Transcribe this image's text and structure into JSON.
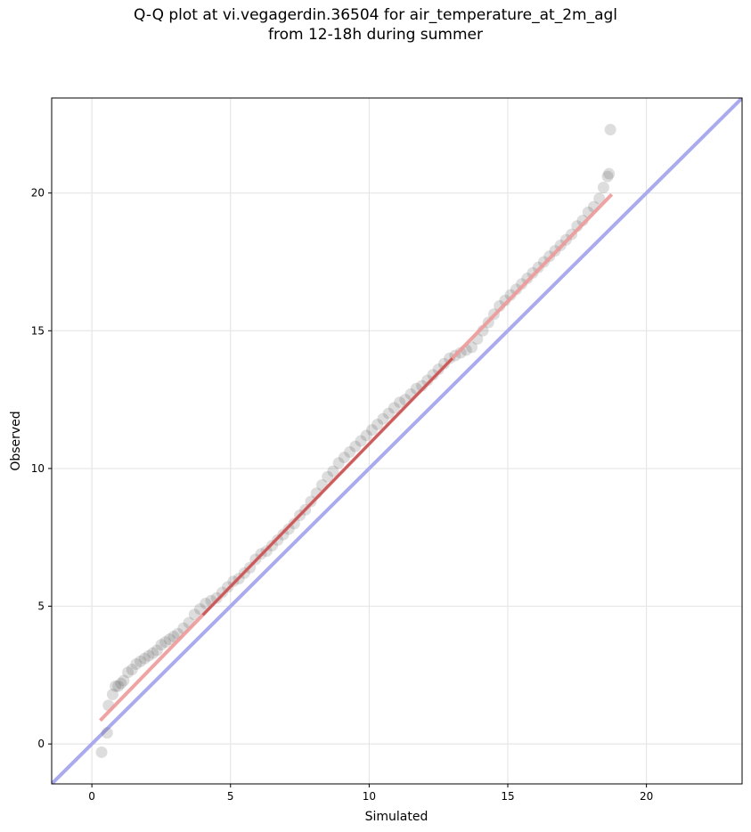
{
  "title": {
    "line1": "Q-Q plot at vi.vegagerdin.36504 for air_temperature_at_2m_agl",
    "line2": "from 12-18h during summer"
  },
  "chart_data": {
    "type": "scatter",
    "xlabel": "Simulated",
    "ylabel": "Observed",
    "xlim": [
      -1.45,
      23.45
    ],
    "ylim": [
      -1.45,
      23.45
    ],
    "xticks": [
      "0",
      "5",
      "10",
      "15",
      "20"
    ],
    "yticks": [
      "0",
      "5",
      "10",
      "15",
      "20"
    ],
    "tick_values": [
      0,
      5,
      10,
      15,
      20
    ],
    "grid": true,
    "colors": {
      "points": "#555555",
      "reference_line": "#aaaaee",
      "fit_line": "#ee9999",
      "core_line": "#aa2222"
    },
    "reference_line": {
      "name": "",
      "x": [
        -1.45,
        23.45
      ],
      "y": [
        -1.45,
        23.45
      ]
    },
    "fit_line": {
      "name": "",
      "x": [
        0.3,
        18.75
      ],
      "y": [
        0.85,
        19.95
      ]
    },
    "series": [
      {
        "name": "",
        "x": [
          0.35,
          0.55,
          0.6,
          0.75,
          0.85,
          0.95,
          1.05,
          1.15,
          1.3,
          1.45,
          1.6,
          1.75,
          1.9,
          2.05,
          2.2,
          2.35,
          2.5,
          2.65,
          2.8,
          2.95,
          3.1,
          3.3,
          3.5,
          3.7,
          3.9,
          4.1,
          4.3,
          4.5,
          4.7,
          4.9,
          5.1,
          5.3,
          5.5,
          5.7,
          5.9,
          6.1,
          6.3,
          6.5,
          6.7,
          6.9,
          7.1,
          7.3,
          7.5,
          7.7,
          7.9,
          8.1,
          8.3,
          8.5,
          8.7,
          8.9,
          9.1,
          9.3,
          9.5,
          9.7,
          9.9,
          10.1,
          10.3,
          10.5,
          10.7,
          10.9,
          11.1,
          11.3,
          11.5,
          11.7,
          11.9,
          12.1,
          12.3,
          12.5,
          12.7,
          12.9,
          13.1,
          13.3,
          13.5,
          13.7,
          13.9,
          14.1,
          14.3,
          14.5,
          14.7,
          14.9,
          15.1,
          15.3,
          15.5,
          15.7,
          15.9,
          16.1,
          16.3,
          16.5,
          16.7,
          16.9,
          17.1,
          17.3,
          17.5,
          17.7,
          17.9,
          18.1,
          18.3,
          18.45,
          18.6,
          18.65,
          18.7
        ],
        "y": [
          -0.3,
          0.4,
          1.4,
          1.8,
          2.1,
          2.1,
          2.2,
          2.3,
          2.6,
          2.7,
          2.9,
          3.0,
          3.1,
          3.2,
          3.3,
          3.4,
          3.6,
          3.7,
          3.8,
          3.9,
          4.0,
          4.2,
          4.4,
          4.7,
          4.9,
          5.1,
          5.2,
          5.3,
          5.5,
          5.7,
          5.9,
          6.0,
          6.2,
          6.4,
          6.7,
          6.9,
          7.0,
          7.2,
          7.4,
          7.6,
          7.8,
          8.0,
          8.3,
          8.5,
          8.8,
          9.1,
          9.4,
          9.7,
          9.9,
          10.2,
          10.4,
          10.6,
          10.8,
          11.0,
          11.2,
          11.4,
          11.6,
          11.8,
          12.0,
          12.2,
          12.4,
          12.5,
          12.7,
          12.9,
          13.0,
          13.2,
          13.4,
          13.6,
          13.8,
          14.0,
          14.1,
          14.2,
          14.3,
          14.4,
          14.7,
          15.0,
          15.3,
          15.6,
          15.9,
          16.1,
          16.3,
          16.5,
          16.7,
          16.9,
          17.1,
          17.3,
          17.5,
          17.7,
          17.9,
          18.1,
          18.3,
          18.5,
          18.8,
          19.0,
          19.3,
          19.5,
          19.8,
          20.2,
          20.6,
          20.7,
          22.3
        ]
      }
    ]
  }
}
